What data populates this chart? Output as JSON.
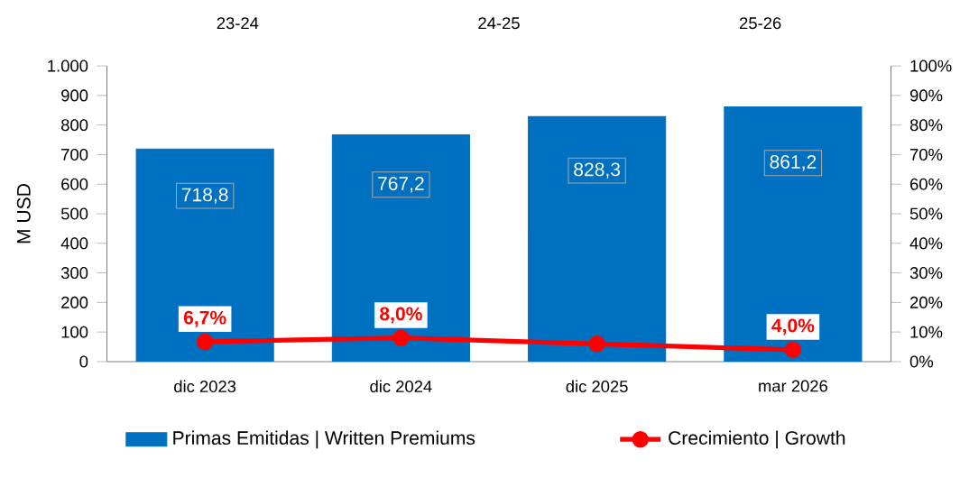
{
  "chart_data": {
    "type": "bar",
    "ylabel": "M  USD",
    "categories": [
      "dic 2023",
      "dic 2024",
      "dic 2025",
      "mar 2026"
    ],
    "series": [
      {
        "name": "Primas Emitidas | Written Premiums",
        "color": "#0070c0",
        "values": [
          718.8,
          767.2,
          828.3,
          861.2
        ],
        "value_labels": [
          "718,8",
          "767,2",
          "828,3",
          "861,2"
        ]
      },
      {
        "name": "Crecimiento | Growth",
        "type": "line",
        "axis": "y2",
        "color": "#ff0000",
        "values": [
          6.7,
          8.0,
          6.0,
          4.0
        ],
        "value_labels": [
          "6,7%",
          "8,0%",
          null,
          "4,0%"
        ]
      }
    ],
    "ylim": [
      0,
      1000
    ],
    "yticks": [
      0,
      100,
      200,
      300,
      400,
      500,
      600,
      700,
      800,
      900,
      {
        "value": 1000,
        "label": "1.000"
      }
    ],
    "y2lim": [
      0,
      100
    ],
    "y2ticks": [
      {
        "value": 0,
        "label": "0%"
      },
      {
        "value": 10,
        "label": "10%"
      },
      {
        "value": 20,
        "label": "20%"
      },
      {
        "value": 30,
        "label": "30%"
      },
      {
        "value": 40,
        "label": "40%"
      },
      {
        "value": 50,
        "label": "50%"
      },
      {
        "value": 60,
        "label": "60%"
      },
      {
        "value": 70,
        "label": "70%"
      },
      {
        "value": 80,
        "label": "80%"
      },
      {
        "value": 90,
        "label": "90%"
      },
      {
        "value": 100,
        "label": "100%"
      }
    ],
    "annotations": [
      "23-24",
      "24-25",
      "25-26"
    ],
    "marker": "circle",
    "legend": "bottom",
    "grid": false
  }
}
